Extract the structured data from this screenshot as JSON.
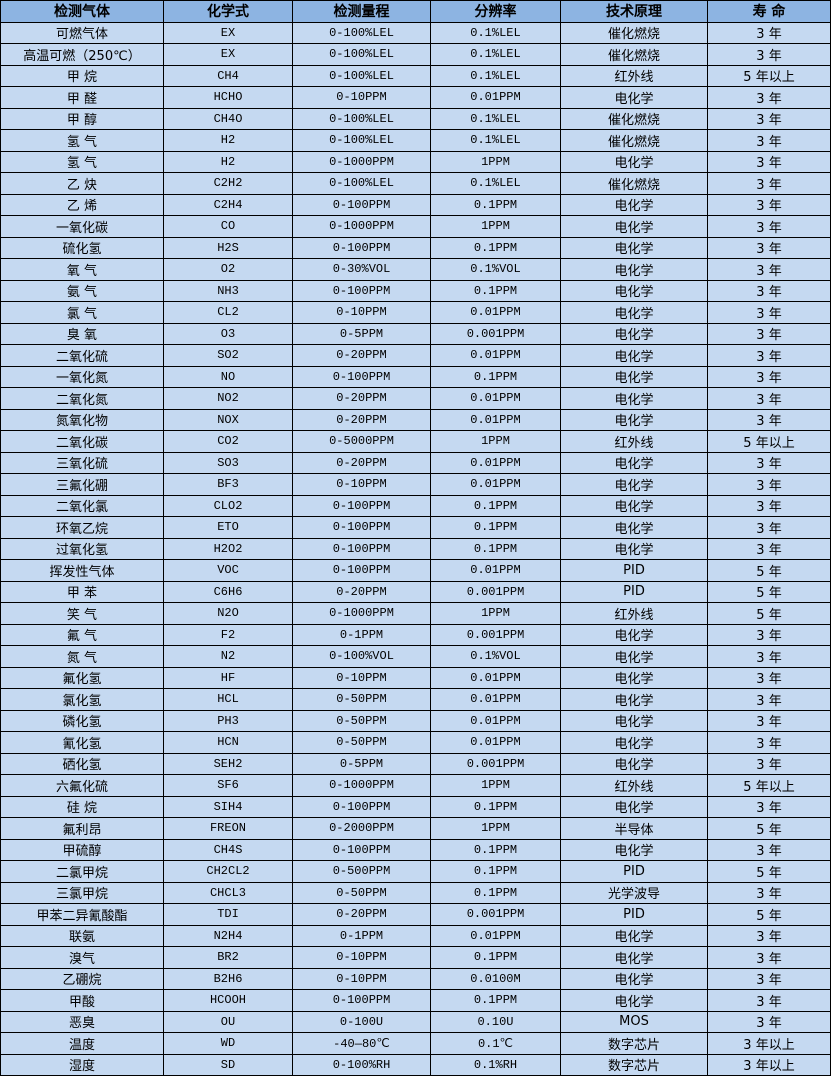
{
  "colors": {
    "header_bg": "#8db4e2",
    "row_bg": "#c5d9f1",
    "border": "#000000"
  },
  "table": {
    "headers": [
      "检测气体",
      "化学式",
      "检测量程",
      "分辨率",
      "技术原理",
      "寿 命"
    ],
    "rows": [
      [
        "可燃气体",
        "EX",
        "0-100%LEL",
        "0.1%LEL",
        "催化燃烧",
        "3 年"
      ],
      [
        "高温可燃（250℃）",
        "EX",
        "0-100%LEL",
        "0.1%LEL",
        "催化燃烧",
        "3 年"
      ],
      [
        "甲 烷",
        "CH4",
        "0-100%LEL",
        "0.1%LEL",
        "红外线",
        "5 年以上"
      ],
      [
        "甲 醛",
        "HCHO",
        "0-10PPM",
        "0.01PPM",
        "电化学",
        "3 年"
      ],
      [
        "甲 醇",
        "CH4O",
        "0-100%LEL",
        "0.1%LEL",
        "催化燃烧",
        "3 年"
      ],
      [
        "氢 气",
        "H2",
        "0-100%LEL",
        "0.1%LEL",
        "催化燃烧",
        "3 年"
      ],
      [
        "氢 气",
        "H2",
        "0-1000PPM",
        "1PPM",
        "电化学",
        "3 年"
      ],
      [
        "乙 炔",
        "C2H2",
        "0-100%LEL",
        "0.1%LEL",
        "催化燃烧",
        "3 年"
      ],
      [
        "乙 烯",
        "C2H4",
        "0-100PPM",
        "0.1PPM",
        "电化学",
        "3 年"
      ],
      [
        "一氧化碳",
        "CO",
        "0-1000PPM",
        "1PPM",
        "电化学",
        "3 年"
      ],
      [
        "硫化氢",
        "H2S",
        "0-100PPM",
        "0.1PPM",
        "电化学",
        "3 年"
      ],
      [
        "氧 气",
        "O2",
        "0-30%VOL",
        "0.1%VOL",
        "电化学",
        "3 年"
      ],
      [
        "氨 气",
        "NH3",
        "0-100PPM",
        "0.1PPM",
        "电化学",
        "3 年"
      ],
      [
        "氯 气",
        "CL2",
        "0-10PPM",
        "0.01PPM",
        "电化学",
        "3 年"
      ],
      [
        "臭 氧",
        "O3",
        "0-5PPM",
        "0.001PPM",
        "电化学",
        "3 年"
      ],
      [
        "二氧化硫",
        "SO2",
        "0-20PPM",
        "0.01PPM",
        "电化学",
        "3 年"
      ],
      [
        "一氧化氮",
        "NO",
        "0-100PPM",
        "0.1PPM",
        "电化学",
        "3 年"
      ],
      [
        "二氧化氮",
        "NO2",
        "0-20PPM",
        "0.01PPM",
        "电化学",
        "3 年"
      ],
      [
        "氮氧化物",
        "NOX",
        "0-20PPM",
        "0.01PPM",
        "电化学",
        "3 年"
      ],
      [
        "二氧化碳",
        "CO2",
        "0-5000PPM",
        "1PPM",
        "红外线",
        "5 年以上"
      ],
      [
        "三氧化硫",
        "SO3",
        "0-20PPM",
        "0.01PPM",
        "电化学",
        "3 年"
      ],
      [
        "三氟化硼",
        "BF3",
        "0-10PPM",
        "0.01PPM",
        "电化学",
        "3 年"
      ],
      [
        "二氧化氯",
        "CLO2",
        "0-100PPM",
        "0.1PPM",
        "电化学",
        "3 年"
      ],
      [
        "环氧乙烷",
        "ETO",
        "0-100PPM",
        "0.1PPM",
        "电化学",
        "3 年"
      ],
      [
        "过氧化氢",
        "H2O2",
        "0-100PPM",
        "0.1PPM",
        "电化学",
        "3 年"
      ],
      [
        "挥发性气体",
        "VOC",
        "0-100PPM",
        "0.01PPM",
        "PID",
        "5 年"
      ],
      [
        "甲 苯",
        "C6H6",
        "0-20PPM",
        "0.001PPM",
        "PID",
        "5 年"
      ],
      [
        "笑 气",
        "N2O",
        "0-1000PPM",
        "1PPM",
        "红外线",
        "5 年"
      ],
      [
        "氟 气",
        "F2",
        "0-1PPM",
        "0.001PPM",
        "电化学",
        "3 年"
      ],
      [
        "氮 气",
        "N2",
        "0-100%VOL",
        "0.1%VOL",
        "电化学",
        "3 年"
      ],
      [
        "氟化氢",
        "HF",
        "0-10PPM",
        "0.01PPM",
        "电化学",
        "3 年"
      ],
      [
        "氯化氢",
        "HCL",
        "0-50PPM",
        "0.01PPM",
        "电化学",
        "3 年"
      ],
      [
        "磷化氢",
        "PH3",
        "0-50PPM",
        "0.01PPM",
        "电化学",
        "3 年"
      ],
      [
        "氰化氢",
        "HCN",
        "0-50PPM",
        "0.01PPM",
        "电化学",
        "3 年"
      ],
      [
        "硒化氢",
        "SEH2",
        "0-5PPM",
        "0.001PPM",
        "电化学",
        "3 年"
      ],
      [
        "六氟化硫",
        "SF6",
        "0-1000PPM",
        "1PPM",
        "红外线",
        "5 年以上"
      ],
      [
        "硅 烷",
        "SIH4",
        "0-100PPM",
        "0.1PPM",
        "电化学",
        "3 年"
      ],
      [
        "氟利昂",
        "FREON",
        "0-2000PPM",
        "1PPM",
        "半导体",
        "5 年"
      ],
      [
        "甲硫醇",
        "CH4S",
        "0-100PPM",
        "0.1PPM",
        "电化学",
        "3 年"
      ],
      [
        "二氯甲烷",
        "CH2CL2",
        "0-500PPM",
        "0.1PPM",
        "PID",
        "5 年"
      ],
      [
        "三氯甲烷",
        "CHCL3",
        "0-50PPM",
        "0.1PPM",
        "光学波导",
        "3 年"
      ],
      [
        "甲苯二异氰酸酯",
        "TDI",
        "0-20PPM",
        "0.001PPM",
        "PID",
        "5 年"
      ],
      [
        "联氨",
        "N2H4",
        "0-1PPM",
        "0.01PPM",
        "电化学",
        "3 年"
      ],
      [
        "溴气",
        "BR2",
        "0-10PPM",
        "0.1PPM",
        "电化学",
        "3 年"
      ],
      [
        "乙硼烷",
        "B2H6",
        "0-10PPM",
        "0.0100M",
        "电化学",
        "3 年"
      ],
      [
        "甲酸",
        "HCOOH",
        "0-100PPM",
        "0.1PPM",
        "电化学",
        "3 年"
      ],
      [
        "恶臭",
        "OU",
        "0-100U",
        "0.10U",
        "MOS",
        "3 年"
      ],
      [
        "温度",
        "WD",
        "-40—80℃",
        "0.1℃",
        "数字芯片",
        "3 年以上"
      ],
      [
        "湿度",
        "SD",
        "0-100%RH",
        "0.1%RH",
        "数字芯片",
        "3 年以上"
      ]
    ]
  }
}
